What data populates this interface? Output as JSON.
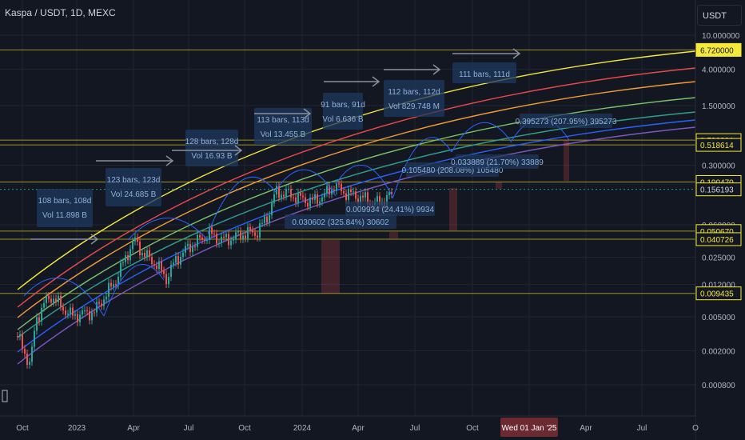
{
  "header": {
    "title": "Kaspa / USDT, 1D, MEXC",
    "unit": "USDT"
  },
  "chart_data": {
    "type": "line",
    "scale": "log",
    "x_ticks": [
      "Oct",
      "2023",
      "Apr",
      "Jul",
      "Oct",
      "2024",
      "Apr",
      "Jul",
      "Oct",
      "Wed 01 Jan '25",
      "Apr",
      "Jul",
      "O"
    ],
    "y_ticks": [
      "10.000000",
      "4.000000",
      "1.500000",
      "0.300000",
      "0.060000",
      "0.025000",
      "0.012000",
      "0.005000",
      "0.002000",
      "0.000800"
    ],
    "y_ticks_values": [
      10,
      4,
      1.5,
      0.3,
      0.06,
      0.025,
      0.012,
      0.005,
      0.002,
      0.0008
    ],
    "price_labels": [
      {
        "text": "6.720000",
        "value": 6.72,
        "color": "#f4e83b",
        "fg": "#131722"
      },
      {
        "text": "0.590391",
        "value": 0.590391,
        "color": "#131722",
        "fg": "#f4e83b"
      },
      {
        "text": "0.518614",
        "value": 0.518614,
        "color": "#131722",
        "fg": "#f4e83b"
      },
      {
        "text": "0.190470",
        "value": 0.19047,
        "color": "#131722",
        "fg": "#f4e83b"
      },
      {
        "text": "0.156193",
        "value": 0.156193,
        "color": "#131722",
        "fg": "#d1d4dc"
      },
      {
        "text": "0.050670",
        "value": 0.05067,
        "color": "#131722",
        "fg": "#f4e83b"
      },
      {
        "text": "0.040726",
        "value": 0.040726,
        "color": "#131722",
        "fg": "#f4e83b"
      },
      {
        "text": "0.009435",
        "value": 0.009435,
        "color": "#131722",
        "fg": "#f4e83b"
      }
    ],
    "annotations": [
      {
        "line1": "108 bars, 108d",
        "line2": "Vol 11.898 B"
      },
      {
        "line1": "123 bars, 123d",
        "line2": "Vol 24.685 B"
      },
      {
        "line1": "128 bars, 128d",
        "line2": "Vol 16.93 B"
      },
      {
        "line1": "113 bars, 113d",
        "line2": "Vol 13.455 B"
      },
      {
        "line1": "91 bars, 91d",
        "line2": "Vol 6.636 B"
      },
      {
        "line1": "112 bars, 112d",
        "line2": "Vol 829.748 M"
      },
      {
        "line1": "111 bars, 111d",
        "line2": ""
      }
    ],
    "measurements": [
      "0.030602 (325.84%) 30602",
      "0.009934 (24.41%) 9934",
      "0.105480 (208.08%) 105480",
      "0.033889 (21.70%) 33889",
      "0.395273 (207.95%) 395273"
    ],
    "band_colors": [
      "#f4e83b",
      "#e84a4a",
      "#f29c38",
      "#7bc36a",
      "#2f9e8f",
      "#2962ff",
      "#7e57c2"
    ],
    "candle_colors": {
      "up": "#26a69a",
      "down": "#ef5350"
    }
  }
}
